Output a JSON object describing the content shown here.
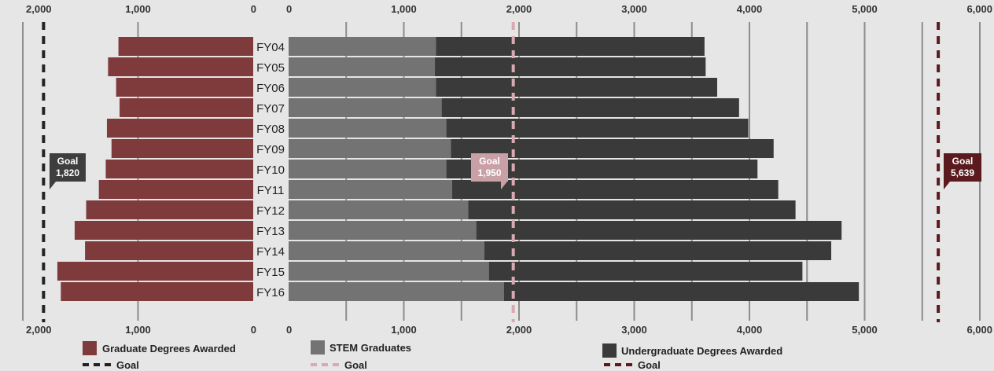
{
  "chart_data": {
    "type": "bar",
    "categories": [
      "FY04",
      "FY05",
      "FY06",
      "FY07",
      "FY08",
      "FY09",
      "FY10",
      "FY11",
      "FY12",
      "FY13",
      "FY14",
      "FY15",
      "FY16"
    ],
    "colors": {
      "graduate": "#7f3a3c",
      "stem": "#737373",
      "undergraduate": "#3a3a3a",
      "graduate_goal": "#222222",
      "stem_goal": "#d7aab1",
      "undergraduate_goal": "#5a1a1e",
      "gridline": "#8c8c8c"
    },
    "graduate": {
      "legend": "Graduate Degrees Awarded",
      "goal_legend": "Goal",
      "goal_title": "Goal",
      "goal_value": 1820,
      "goal_label": "1,820",
      "ticks": [
        "2,000",
        "1,000",
        "0"
      ],
      "tick_values": [
        2000,
        1000,
        0
      ],
      "xlim": [
        0,
        2000
      ],
      "values": [
        1170,
        1260,
        1190,
        1160,
        1270,
        1230,
        1280,
        1340,
        1450,
        1550,
        1460,
        1700,
        1670
      ]
    },
    "stem": {
      "legend": "STEM Graduates",
      "goal_legend": "Goal",
      "goal_title": "Goal",
      "goal_value": 1950,
      "goal_label": "1,950",
      "values": [
        1280,
        1270,
        1280,
        1330,
        1370,
        1410,
        1370,
        1420,
        1560,
        1630,
        1700,
        1740,
        1870
      ]
    },
    "undergraduate": {
      "legend": "Undergraduate Degrees Awarded",
      "goal_legend": "Goal",
      "goal_title": "Goal",
      "goal_value": 5639,
      "goal_label": "5,639",
      "values": [
        3610,
        3620,
        3720,
        3910,
        3990,
        4210,
        4070,
        4250,
        4400,
        4800,
        4710,
        4460,
        4950
      ]
    },
    "right_axis": {
      "ticks": [
        "0",
        "1,000",
        "2,000",
        "3,000",
        "4,000",
        "5,000",
        "6,000"
      ],
      "tick_values": [
        0,
        1000,
        2000,
        3000,
        4000,
        5000,
        6000
      ],
      "xlim": [
        0,
        6000
      ]
    }
  }
}
